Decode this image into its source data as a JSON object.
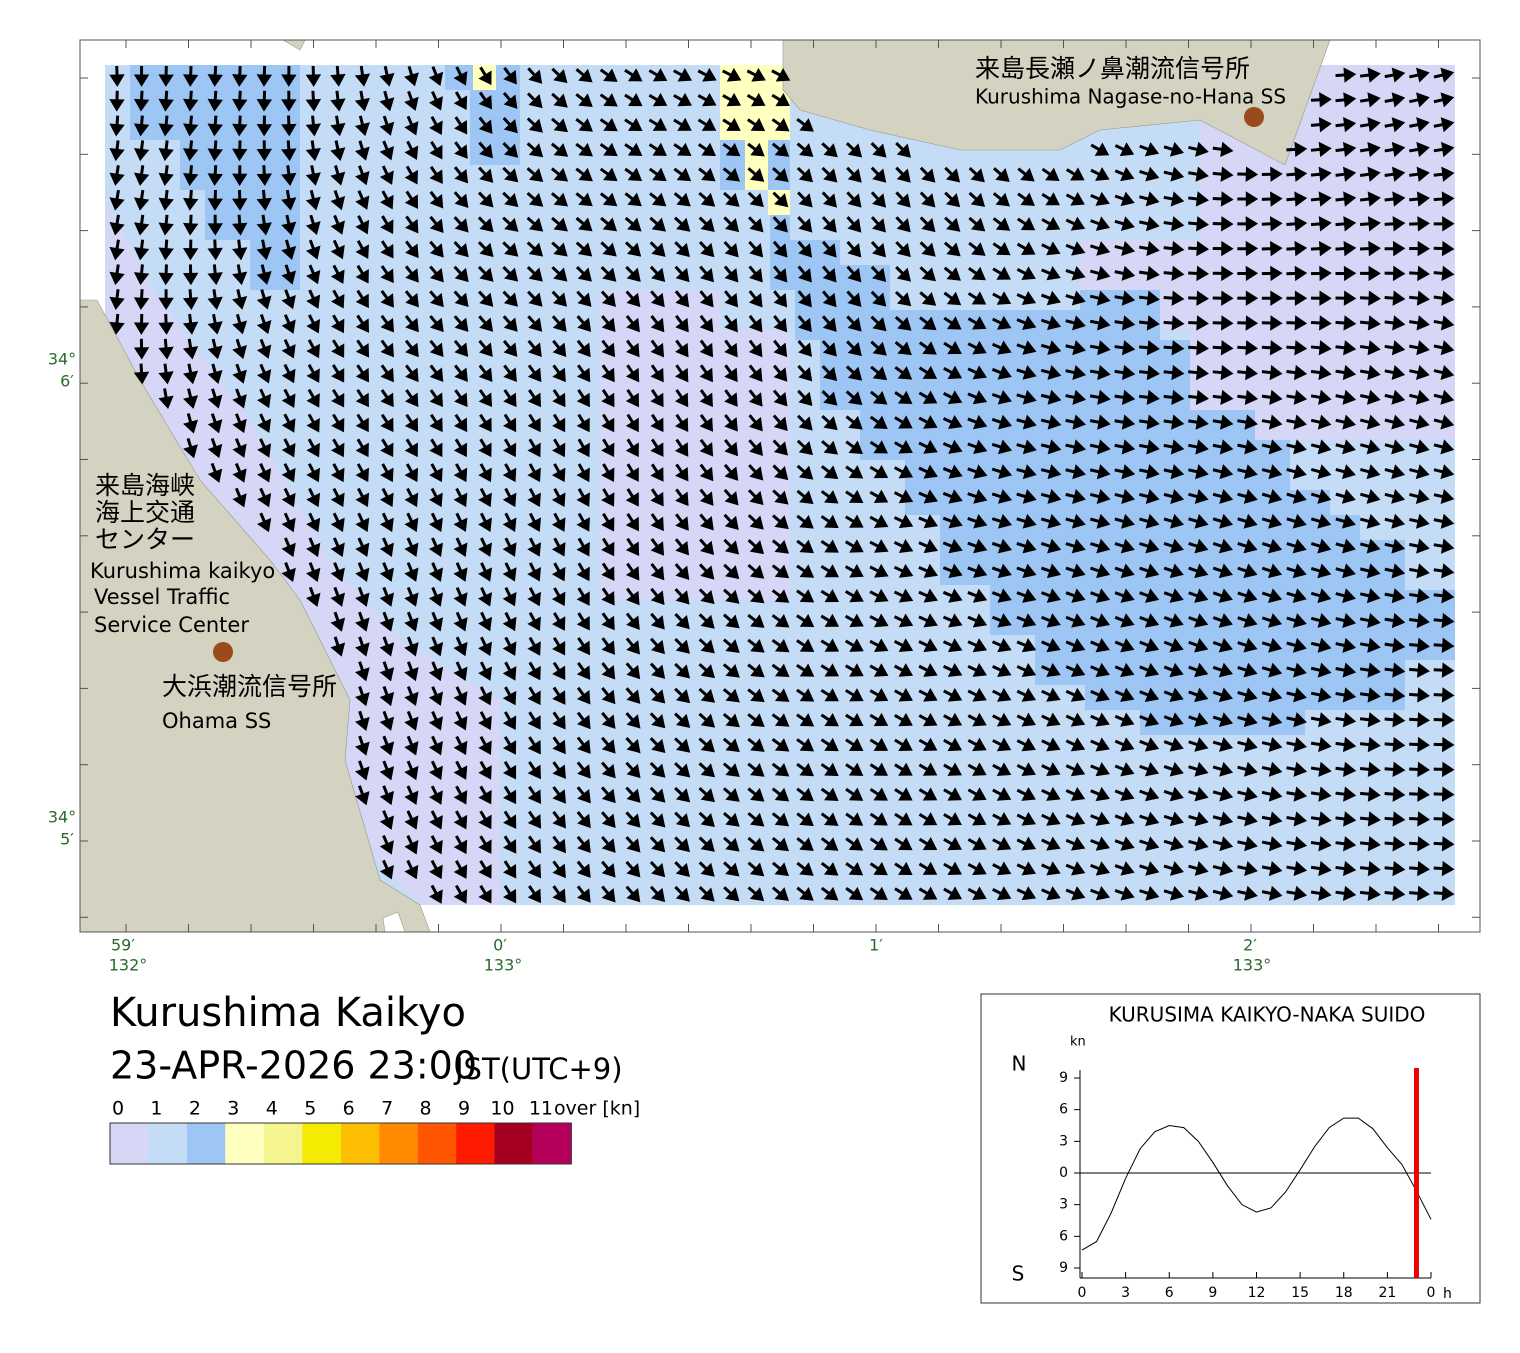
{
  "header": {
    "title": "Kurushima Kaikyo",
    "datetime": "23-APR-2026 23:00",
    "timezone": "JST(UTC+9)"
  },
  "map": {
    "lat_labels": [
      {
        "deg": "34°",
        "min": "6′"
      },
      {
        "deg": "34°",
        "min": "5′"
      }
    ],
    "lon_labels": [
      {
        "min": "59′",
        "deg": "132°"
      },
      {
        "min": "0′",
        "deg": "133°"
      },
      {
        "min": "1′"
      },
      {
        "min": "2′",
        "deg": "133°"
      }
    ],
    "stations": [
      {
        "name_ja": "来島長瀬ノ鼻潮流信号所",
        "name_en": "Kurushima Nagase-no-Hana SS"
      },
      {
        "name_ja": [
          "来島海峡",
          "海上交通",
          "センター"
        ],
        "name_en": [
          "Kurushima kaikyo",
          "Vessel Traffic",
          "Service Center"
        ]
      },
      {
        "name_ja": "大浜潮流信号所",
        "name_en": "Ohama SS"
      }
    ]
  },
  "legend": {
    "labels": [
      "0",
      "1",
      "2",
      "3",
      "4",
      "5",
      "6",
      "7",
      "8",
      "9",
      "10",
      "11"
    ],
    "unit": "over [kn]",
    "colors": [
      "#d6d6f7",
      "#c5dcf7",
      "#9dc6f5",
      "#ffffc0",
      "#f5f590",
      "#f5eb00",
      "#fcbe00",
      "#ff8a00",
      "#ff5500",
      "#ff1a00",
      "#a50021",
      "#b4005a"
    ]
  },
  "chart_data": {
    "type": "line",
    "title": "KURUSIMA KAIKYO-NAKA SUIDO",
    "y_unit": "kn",
    "north_label": "N",
    "south_label": "S",
    "x_unit": "h",
    "x": [
      0,
      1,
      2,
      3,
      4,
      5,
      6,
      7,
      8,
      9,
      10,
      11,
      12,
      13,
      14,
      15,
      16,
      17,
      18,
      19,
      20,
      21,
      22,
      23,
      24
    ],
    "series": [
      {
        "color": "#000000",
        "values": [
          -7.3,
          -6.5,
          -3.8,
          -0.5,
          2.3,
          3.9,
          4.5,
          4.3,
          3.0,
          1.0,
          -1.2,
          -3.0,
          -3.7,
          -3.3,
          -1.8,
          0.3,
          2.5,
          4.3,
          5.2,
          5.2,
          4.2,
          2.4,
          0.8,
          -1.7,
          -4.4
        ]
      }
    ],
    "xlim": [
      0,
      24
    ],
    "ylim": [
      -9,
      9
    ],
    "xticks": [
      0,
      3,
      6,
      9,
      12,
      15,
      18,
      21,
      {
        "value": 24,
        "label": "0"
      }
    ],
    "yticks": [
      {
        "value": -9,
        "label": "9"
      },
      {
        "value": -6,
        "label": "6"
      },
      {
        "value": -3,
        "label": "3"
      },
      0,
      3,
      6,
      9
    ],
    "current_time": 23,
    "current_time_color": "#ee0000"
  }
}
